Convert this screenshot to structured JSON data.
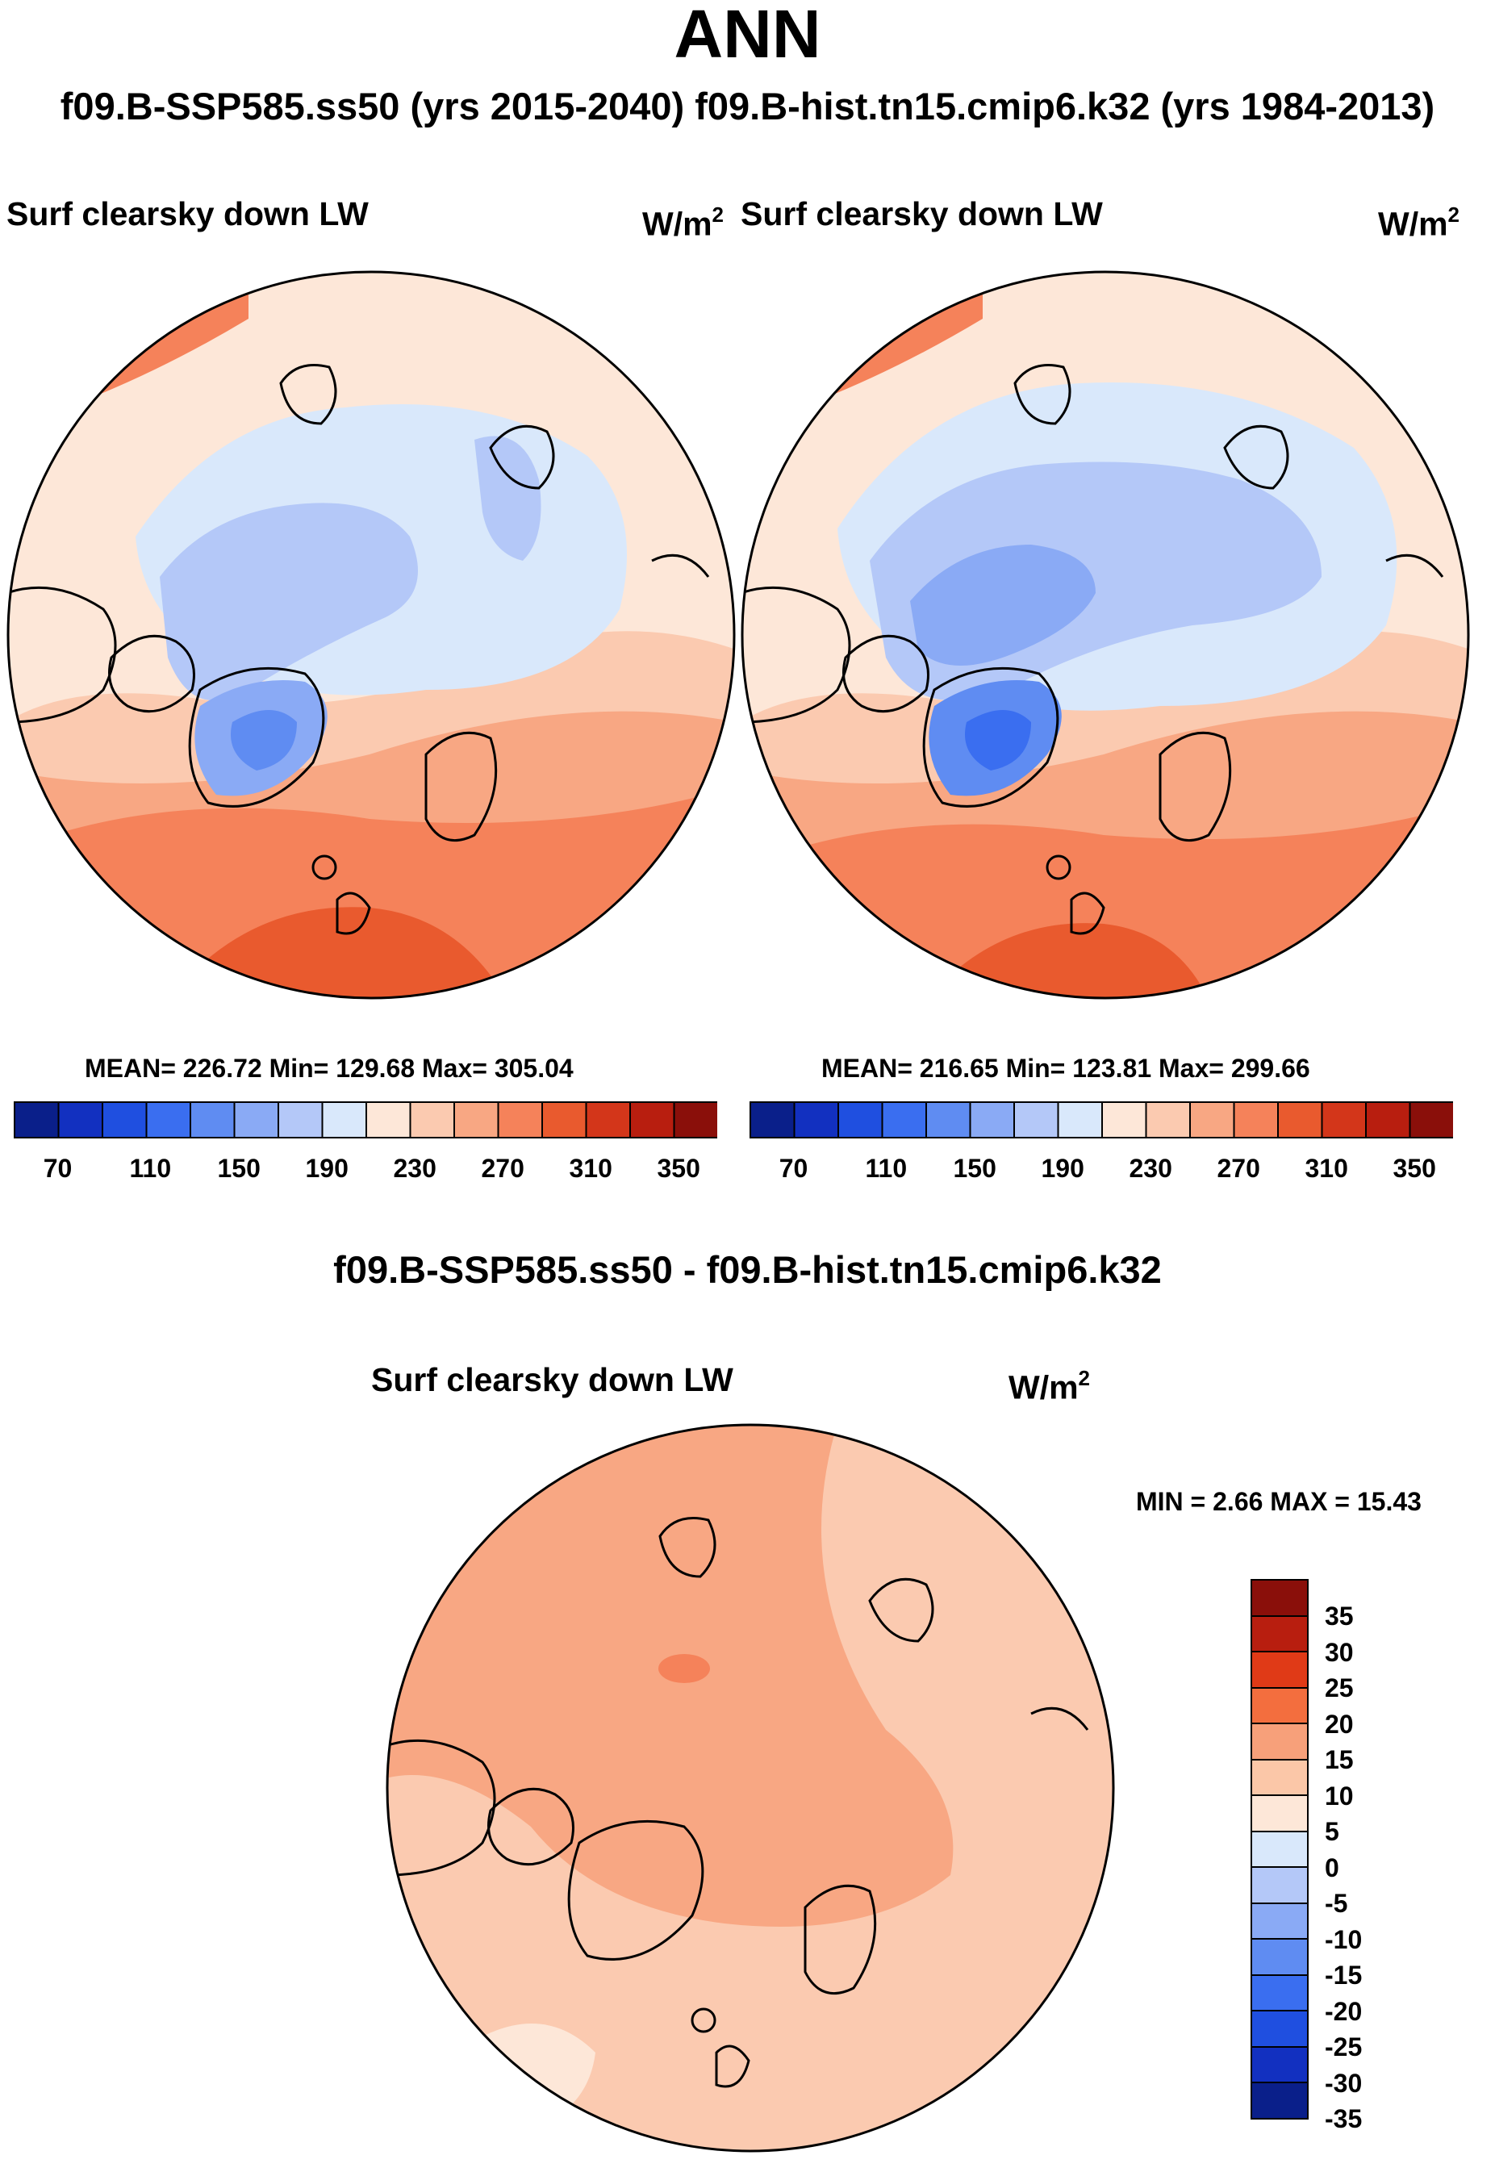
{
  "title": "ANN",
  "subtitle": "f09.B-SSP585.ss50 (yrs 2015-2040)  f09.B-hist.tn15.cmip6.k32 (yrs 1984-2013)",
  "panels": [
    {
      "label": "Surf clearsky down LW",
      "units_base": "W/m",
      "units_exp": "2",
      "stats": "MEAN= 226.72  Min= 129.68  Max= 305.04",
      "ticks": [
        "70",
        "110",
        "150",
        "190",
        "230",
        "270",
        "310",
        "350"
      ]
    },
    {
      "label": "Surf clearsky down LW",
      "units_base": "W/m",
      "units_exp": "2",
      "stats": "MEAN= 216.65  Min= 123.81  Max= 299.66",
      "ticks": [
        "70",
        "110",
        "150",
        "190",
        "230",
        "270",
        "310",
        "350"
      ]
    }
  ],
  "diff": {
    "title": "f09.B-SSP585.ss50 - f09.B-hist.tn15.cmip6.k32",
    "label": "Surf clearsky down LW",
    "units_base": "W/m",
    "units_exp": "2",
    "stats": "MIN =   2.66 MAX =  15.43",
    "ticks": [
      "35",
      "30",
      "25",
      "20",
      "15",
      "10",
      "5",
      "0",
      "-5",
      "-10",
      "-15",
      "-20",
      "-25",
      "-30",
      "-35"
    ]
  },
  "colors": {
    "abs_scale": [
      "#0a1f8a",
      "#1230c0",
      "#1f4fe0",
      "#3a6ef0",
      "#5f8cf2",
      "#8aaaf5",
      "#b4c8f8",
      "#d9e8fb",
      "#fde7d8",
      "#fbcab0",
      "#f8a783",
      "#f5825a",
      "#e95a2e",
      "#d3361a",
      "#b81e0f",
      "#8a0f0a"
    ],
    "diff_scale": [
      "#8a0f0a",
      "#b81e0f",
      "#e03a17",
      "#f36e3e",
      "#f7a07a",
      "#fbc7a8",
      "#fde7d8",
      "#d9e8fb",
      "#b4c8f8",
      "#8aaaf5",
      "#5f8cf2",
      "#3a6ef0",
      "#1f4fe0",
      "#1230c0",
      "#0a1f8a"
    ],
    "land_outline": "#000000"
  }
}
